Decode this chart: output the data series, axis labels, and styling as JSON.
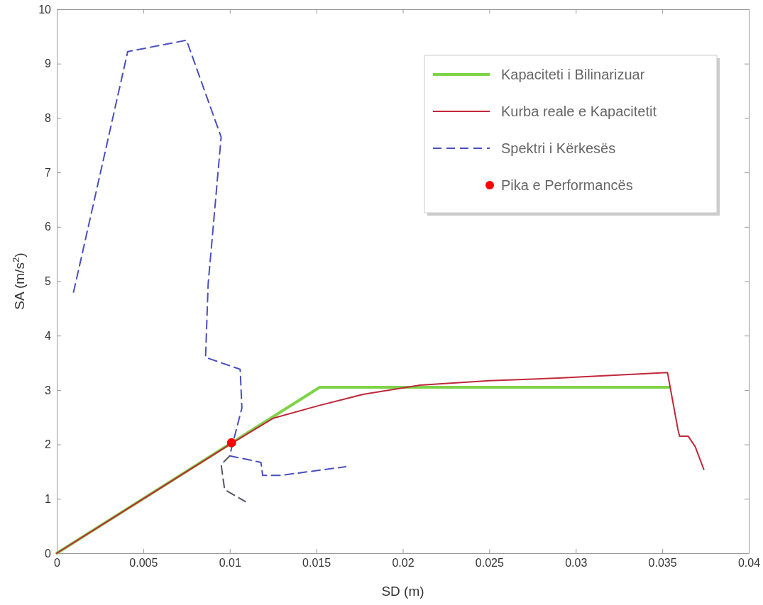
{
  "chart_data": {
    "type": "line",
    "xlabel": "SD (m)",
    "ylabel": "SA (m/s$^{2}$)",
    "xlim": [
      0,
      0.04
    ],
    "ylim": [
      0,
      10
    ],
    "xticks": [
      0,
      0.005,
      0.01,
      0.015,
      0.02,
      0.025,
      0.03,
      0.035,
      0.04
    ],
    "yticks": [
      0,
      1,
      2,
      3,
      4,
      5,
      6,
      7,
      8,
      9,
      10
    ],
    "grid": false,
    "legend": "top right",
    "series": [
      {
        "name": "Kapaciteti i Bilinarizuar",
        "color": "#7ed348",
        "line_style": "solid",
        "marker": "none",
        "x": [
          0,
          0.0152,
          0.0354
        ],
        "values": [
          0,
          3.05,
          3.05
        ]
      },
      {
        "name": "Kurba reale e Kapacitetit",
        "color": "#c0283a",
        "line_style": "solid",
        "marker": "none",
        "x": [
          0,
          0.0101,
          0.0125,
          0.0151,
          0.0177,
          0.021,
          0.025,
          0.029,
          0.0353,
          0.0356,
          0.0359,
          0.036,
          0.0365,
          0.0369,
          0.0374
        ],
        "values": [
          0,
          2.02,
          2.48,
          2.71,
          2.92,
          3.09,
          3.17,
          3.22,
          3.32,
          2.8,
          2.28,
          2.15,
          2.15,
          1.96,
          1.54
        ]
      },
      {
        "name": "Spektri i Kërkesës",
        "color": "#4a4fc0",
        "line_style": "dashed",
        "marker": "none",
        "x": [
          0.00097,
          0.0041,
          0.0075,
          0.0095,
          0.00875,
          0.0086,
          0.0106,
          0.0107,
          0.0101,
          0.01,
          0.0118,
          0.0119,
          0.0129,
          0.0167
        ],
        "values": [
          4.8,
          9.22,
          9.43,
          7.65,
          4.95,
          3.6,
          3.38,
          2.67,
          1.93,
          1.79,
          1.67,
          1.43,
          1.43,
          1.59
        ]
      },
      {
        "color": "#555566",
        "line_style": "dashed",
        "marker": "none",
        "x": [
          0.01,
          0.0095,
          0.0097,
          0.0109
        ],
        "values": [
          1.79,
          1.63,
          1.17,
          0.95
        ]
      },
      {
        "name": "Pika e Performancës",
        "type": "scatter",
        "color": "#ff0000",
        "marker": "circle",
        "x": [
          0.0101
        ],
        "values": [
          2.03
        ]
      }
    ]
  }
}
